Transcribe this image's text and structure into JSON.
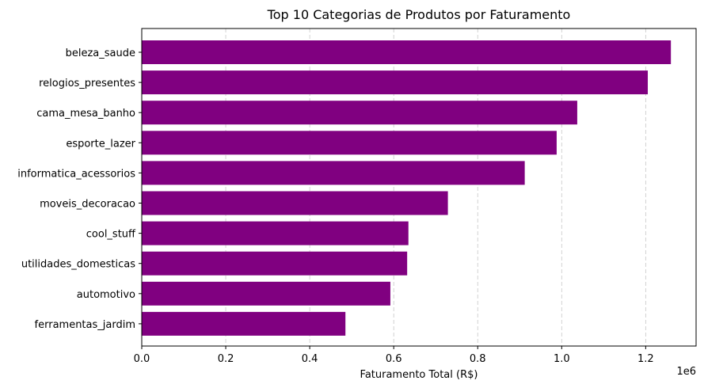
{
  "chart_data": {
    "type": "bar",
    "orientation": "horizontal",
    "title": "Top 10 Categorias de Produtos por Faturamento",
    "xlabel": "Faturamento Total (R$)",
    "ylabel": "",
    "x_offset_label": "1e6",
    "categories": [
      "beleza_saude",
      "relogios_presentes",
      "cama_mesa_banho",
      "esporte_lazer",
      "informatica_acessorios",
      "moveis_decoracao",
      "cool_stuff",
      "utilidades_domesticas",
      "automotivo",
      "ferramentas_jardim"
    ],
    "values": [
      1260000,
      1205000,
      1037000,
      988000,
      912000,
      729000,
      635000,
      632000,
      592000,
      485000
    ],
    "xlim": [
      0,
      1320000
    ],
    "xticks": [
      0,
      200000,
      400000,
      600000,
      800000,
      1000000,
      1200000
    ],
    "xtick_labels": [
      "0.0",
      "0.2",
      "0.4",
      "0.6",
      "0.8",
      "1.0",
      "1.2"
    ],
    "bar_color": "#800080",
    "grid": "x-axis dashed"
  }
}
